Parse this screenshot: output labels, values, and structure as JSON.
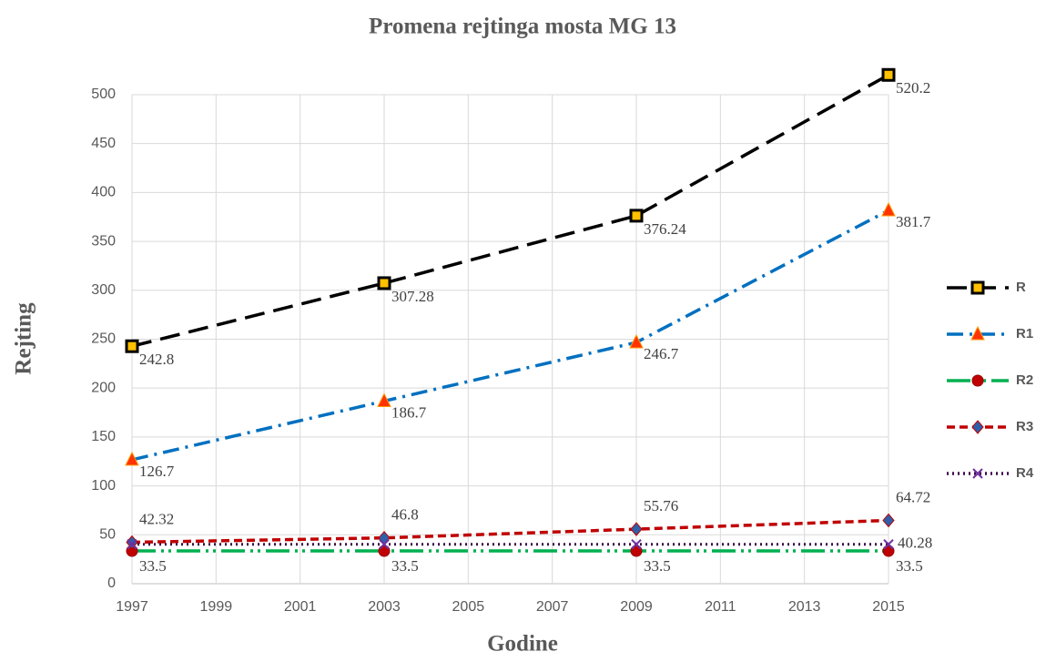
{
  "chart_data": {
    "type": "line",
    "title": "Promena rejtinga mosta MG 13",
    "x_label": "Godine",
    "y_label": "Rejting",
    "x": [
      1997,
      2003,
      2009,
      2015
    ],
    "series": [
      {
        "name": "R",
        "color": "#000000",
        "marker_color": "#ffc000",
        "values": [
          242.8,
          307.28,
          376.24,
          520.2
        ]
      },
      {
        "name": "R1",
        "color": "#0070c0",
        "marker_color": "#ff3300",
        "values": [
          126.7,
          186.7,
          246.7,
          381.7
        ]
      },
      {
        "name": "R2",
        "color": "#00b050",
        "marker_color": "#c00000",
        "values": [
          33.5,
          33.5,
          33.5,
          33.5
        ]
      },
      {
        "name": "R3",
        "color": "#c00000",
        "marker_color": "#2e5fa8",
        "values": [
          42.32,
          46.8,
          55.76,
          64.72
        ]
      },
      {
        "name": "R4",
        "color": "#3c0a49",
        "marker_color": "#7030a0",
        "values": [
          40.28,
          40.28,
          40.28,
          40.28
        ],
        "value_labels": [
          null,
          null,
          null,
          "40.28"
        ]
      }
    ],
    "xlim": [
      1997,
      2015
    ],
    "xticks": [
      1997,
      1999,
      2001,
      2003,
      2005,
      2007,
      2009,
      2011,
      2013,
      2015
    ],
    "ylim": [
      0,
      540
    ],
    "yticks": [
      0,
      50,
      100,
      150,
      200,
      250,
      300,
      350,
      400,
      450,
      500
    ],
    "grid": true,
    "legend": "right"
  }
}
